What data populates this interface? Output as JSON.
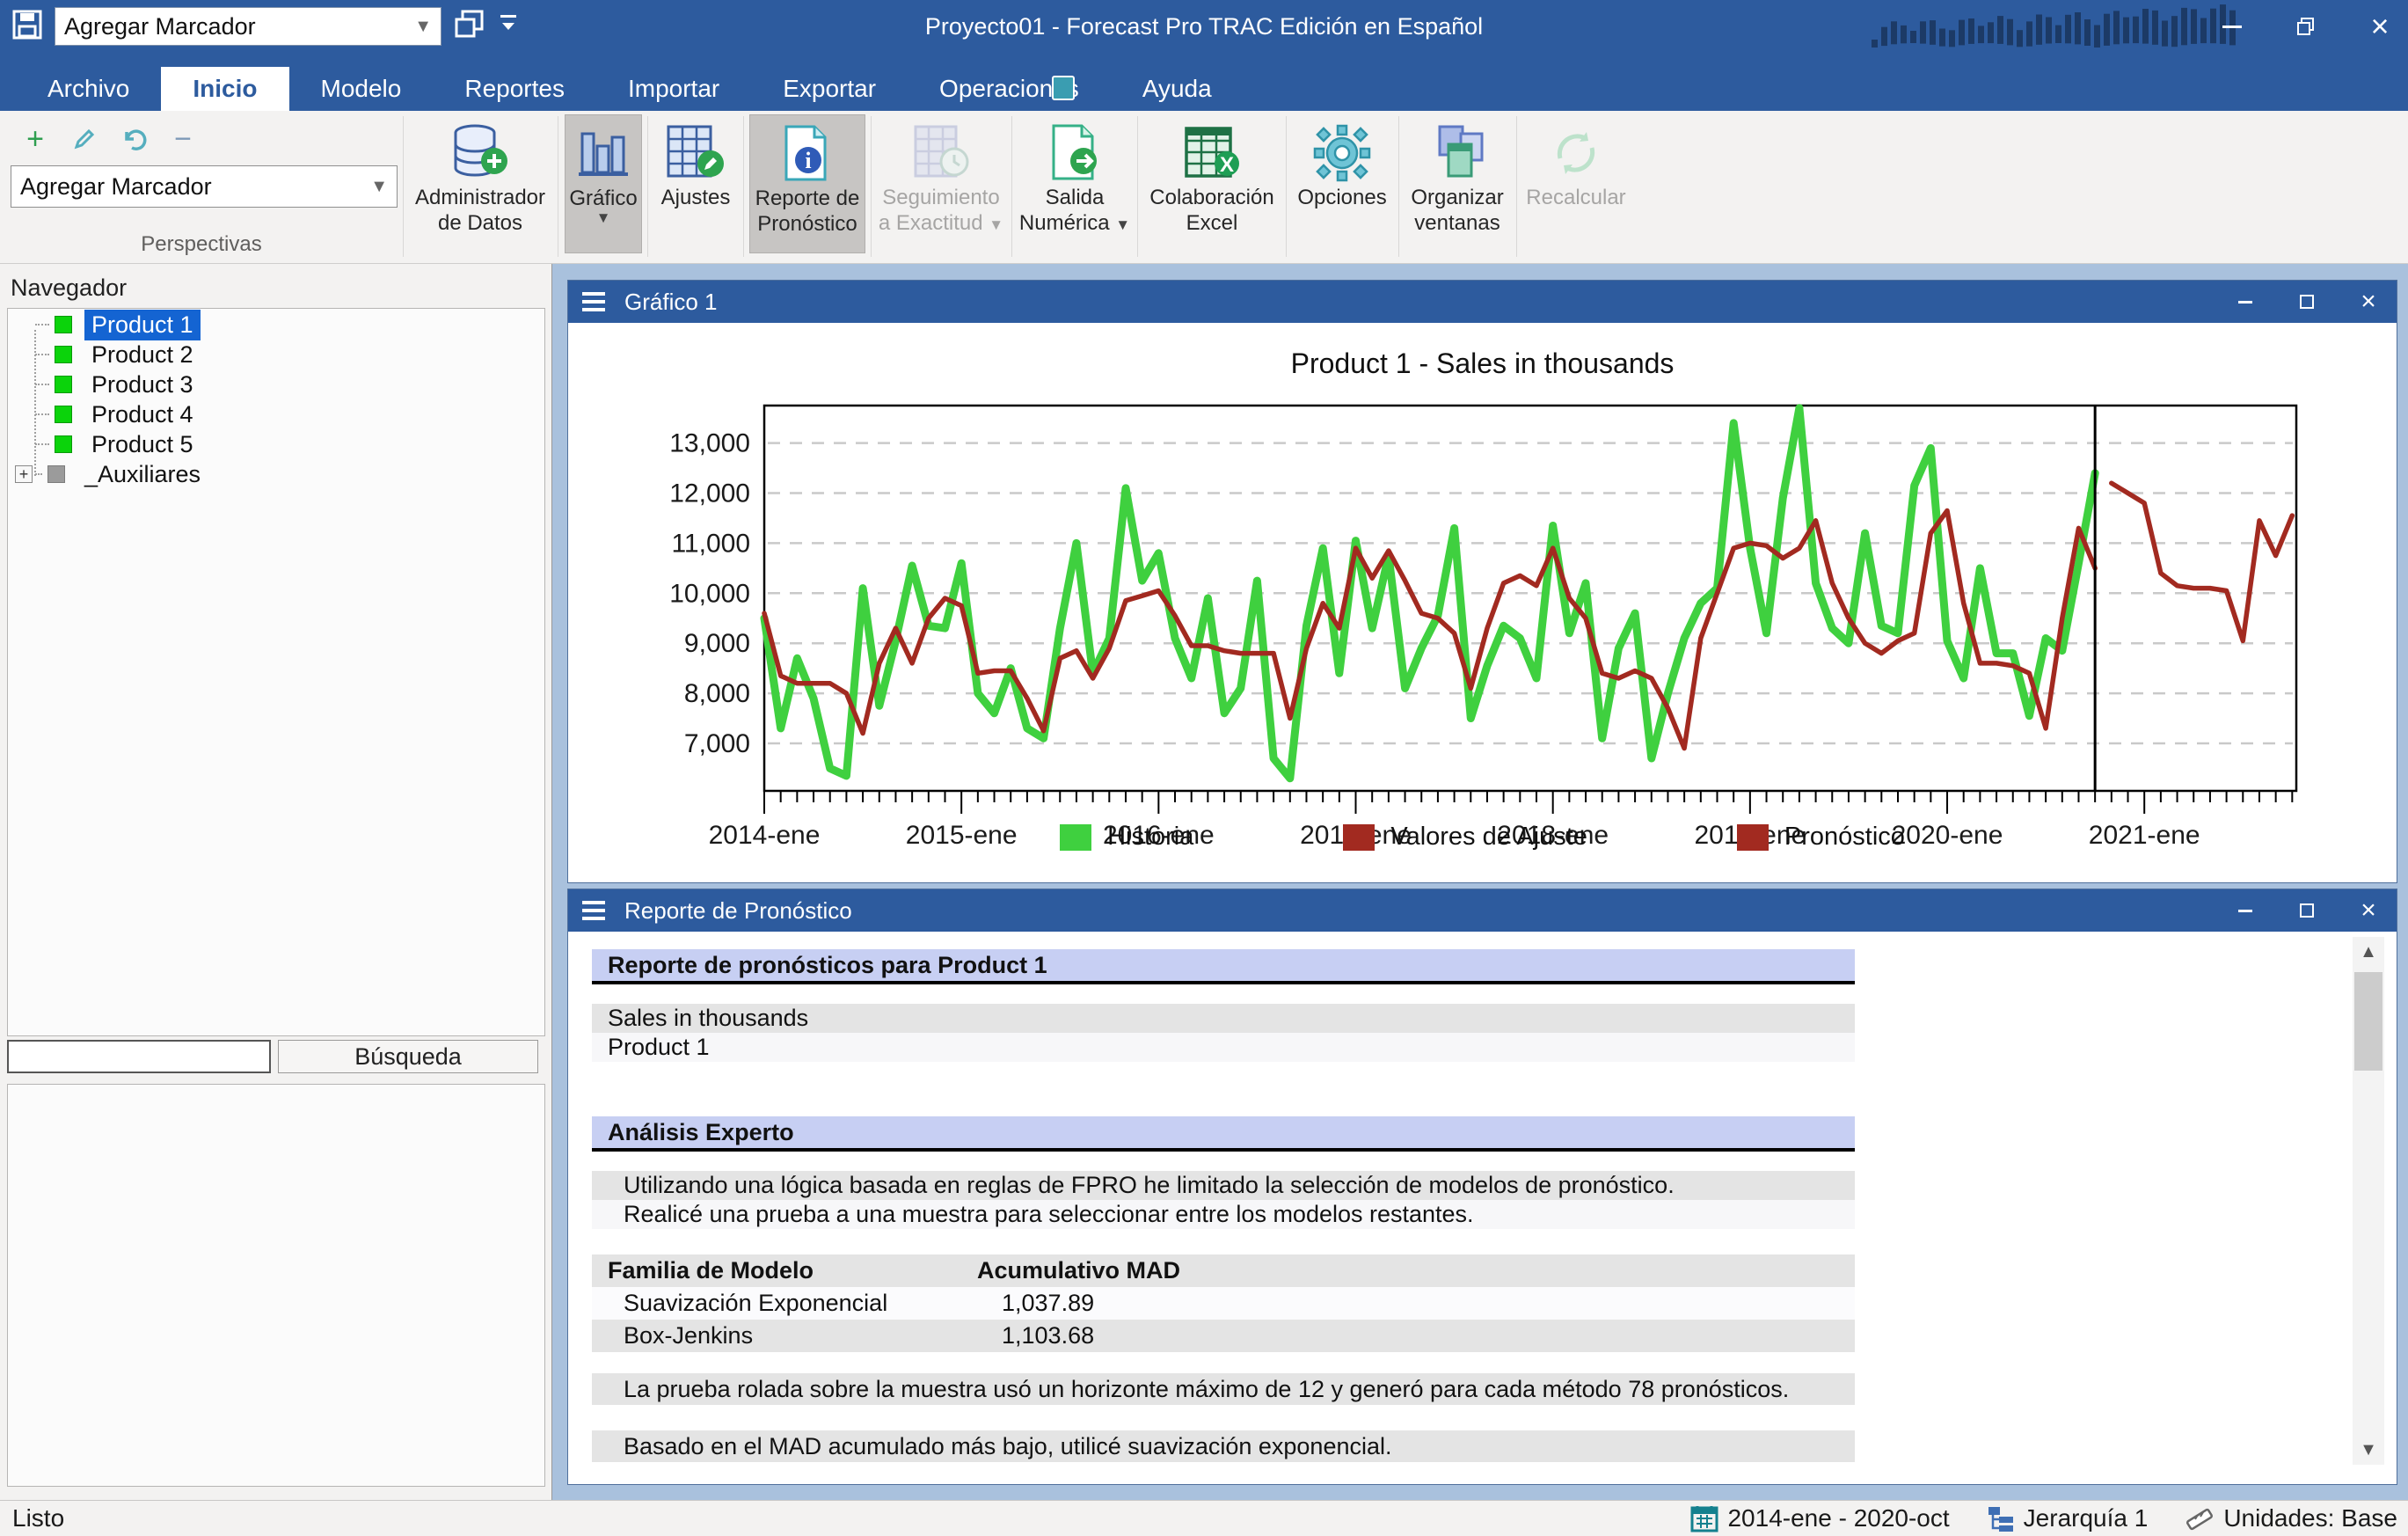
{
  "titlebar": {
    "title": "Proyecto01 - Forecast Pro TRAC Edición en Español",
    "quick_combo_value": "Agregar Marcador"
  },
  "menu": {
    "tabs": [
      {
        "label": "Archivo"
      },
      {
        "label": "Inicio"
      },
      {
        "label": "Modelo"
      },
      {
        "label": "Reportes"
      },
      {
        "label": "Importar"
      },
      {
        "label": "Exportar"
      },
      {
        "label": "Operaciones"
      },
      {
        "label": "Ayuda"
      }
    ],
    "active_tab": "Inicio"
  },
  "ribbon": {
    "group_label": "Perspectivas",
    "combo_value": "Agregar Marcador",
    "buttons": [
      {
        "line1": "Administrador",
        "line2": "de Datos"
      },
      {
        "line1": "Gráfico",
        "line2": ""
      },
      {
        "line1": "Ajustes",
        "line2": ""
      },
      {
        "line1": "Reporte de",
        "line2": "Pronóstico"
      },
      {
        "line1": "Seguimiento",
        "line2": "a Exactitud"
      },
      {
        "line1": "Salida",
        "line2": "Numérica"
      },
      {
        "line1": "Colaboración",
        "line2": "Excel"
      },
      {
        "line1": "Opciones",
        "line2": ""
      },
      {
        "line1": "Organizar",
        "line2": "ventanas"
      },
      {
        "line1": "Recalcular",
        "line2": ""
      }
    ]
  },
  "navigator": {
    "label": "Navegador",
    "items": [
      {
        "label": "Product 1",
        "selected": true
      },
      {
        "label": "Product 2"
      },
      {
        "label": "Product 3"
      },
      {
        "label": "Product 4"
      },
      {
        "label": "Product 5"
      },
      {
        "label": "_Auxiliares",
        "expandable": true
      }
    ],
    "search_button": "Búsqueda",
    "search_value": ""
  },
  "chart_window": {
    "title": "Gráfico 1"
  },
  "report_window": {
    "title": "Reporte de Pronóstico",
    "heading": "Reporte de pronósticos para Product 1",
    "series_name": "Sales in thousands",
    "item_name": "Product 1",
    "section": "Análisis Experto",
    "para1": "Utilizando una lógica basada en reglas de FPRO he limitado la selección de modelos de pronóstico.",
    "para2": "Realicé una prueba a una muestra para seleccionar entre los modelos restantes.",
    "table": {
      "col1": "Familia de Modelo",
      "col2": "Acumulativo MAD",
      "rows": [
        [
          "Suavización Exponencial",
          "1,037.89"
        ],
        [
          "Box-Jenkins",
          "1,103.68"
        ]
      ]
    },
    "note1": "La prueba rolada sobre la muestra usó un horizonte máximo de 12 y generó para cada método 78 pronósticos.",
    "note2": "Basado en el MAD acumulado más bajo, utilicé suavización exponencial."
  },
  "status_bar": {
    "ready": "Listo",
    "date_range": "2014-ene - 2020-oct",
    "hierarchy": "Jerarquía 1",
    "units": "Unidades: Base"
  },
  "chart_data": {
    "type": "line",
    "title": "Product 1 - Sales in thousands",
    "x_unit": "month",
    "x_start": "2014-ene",
    "history_end": "2020-oct",
    "forecast_start": "2020-nov",
    "forecast_horizon": 12,
    "ylim": [
      6050,
      13750
    ],
    "yticks": [
      7000,
      8000,
      9000,
      10000,
      11000,
      12000,
      13000
    ],
    "ytick_labels": [
      "7,000",
      "8,000",
      "9,000",
      "10,000",
      "11,000",
      "12,000",
      "13,000"
    ],
    "year_tick_labels": [
      "2014-ene",
      "2015-ene",
      "2016-ene",
      "2017-ene",
      "2018-ene",
      "2019-ene",
      "2020-ene",
      "2021-ene"
    ],
    "grid": "horizontal-dashed",
    "legend_position": "bottom",
    "divider_index": 81,
    "legend": [
      "Historia",
      "Valores de Ajuste",
      "Pronóstico"
    ],
    "series": [
      {
        "name": "Historia",
        "color": "#3fd03f",
        "start_index": 0,
        "values": [
          9500,
          7300,
          8700,
          7900,
          6500,
          6350,
          10100,
          7750,
          9050,
          10550,
          9350,
          9300,
          10600,
          8000,
          7600,
          8500,
          7300,
          7100,
          9300,
          11000,
          8400,
          9100,
          12100,
          10250,
          10800,
          9100,
          8300,
          9900,
          7600,
          8100,
          10250,
          6700,
          6300,
          9350,
          10900,
          8400,
          11050,
          9300,
          10750,
          8100,
          8900,
          9550,
          11300,
          7500,
          8550,
          9350,
          9100,
          8300,
          11350,
          9200,
          10200,
          7100,
          8900,
          9600,
          6700,
          8000,
          9100,
          9800,
          10100,
          13400,
          10900,
          9200,
          11900,
          13700,
          10200,
          9300,
          9000,
          11200,
          9350,
          9200,
          12150,
          12900,
          9050,
          8300,
          10500,
          8800,
          8800,
          7550,
          9100,
          8850,
          10600,
          12400
        ]
      },
      {
        "name": "Valores de Ajuste",
        "color": "#a22a20",
        "start_index": 0,
        "values": [
          9600,
          8350,
          8200,
          8200,
          8200,
          8000,
          7200,
          8600,
          9300,
          8600,
          9500,
          9900,
          9750,
          8400,
          8450,
          8450,
          7900,
          7250,
          8700,
          8850,
          8300,
          8900,
          9850,
          9950,
          10050,
          9550,
          8950,
          8950,
          8850,
          8800,
          8800,
          8800,
          7500,
          8900,
          9800,
          9300,
          10900,
          10300,
          10850,
          10250,
          9600,
          9500,
          9200,
          8100,
          9300,
          10200,
          10350,
          10150,
          10900,
          9900,
          9500,
          8400,
          8300,
          8450,
          8300,
          7700,
          6900,
          9100,
          10000,
          10900,
          11000,
          10950,
          10700,
          10900,
          11450,
          10200,
          9500,
          9000,
          8800,
          9050,
          9200,
          11200,
          11650,
          9800,
          8600,
          8600,
          8550,
          8400,
          7300,
          9500,
          11300,
          10500
        ]
      },
      {
        "name": "Pronóstico",
        "color": "#a22a20",
        "start_index": 82,
        "values": [
          12200,
          12000,
          11800,
          10400,
          10150,
          10100,
          10100,
          10050,
          9050,
          11450,
          10750,
          11550
        ]
      }
    ]
  }
}
